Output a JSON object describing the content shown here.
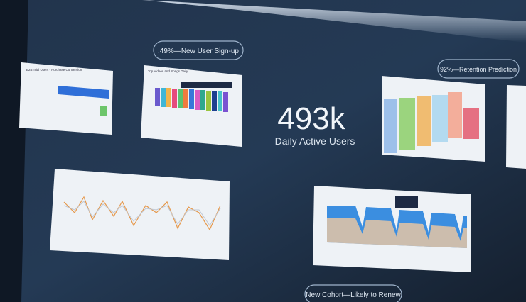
{
  "pills": {
    "sign_up": ".49%—New User Sign-up",
    "retention": "92%—Retention Prediction",
    "cohort": "New Cohort—Likely to Renew"
  },
  "headline": {
    "value": "493k",
    "label": "Daily Active Users"
  },
  "panels": {
    "conversion_title": "B2B Trial Users - Purchase Conversion",
    "videos_title": "Top Videos and Songs Daily"
  }
}
